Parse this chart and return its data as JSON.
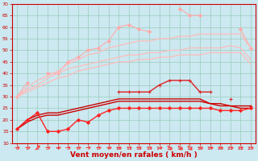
{
  "x": [
    0,
    1,
    2,
    3,
    4,
    5,
    6,
    7,
    8,
    9,
    10,
    11,
    12,
    13,
    14,
    15,
    16,
    17,
    18,
    19,
    20,
    21,
    22,
    23
  ],
  "series": [
    {
      "name": "jagged_pink_with_markers",
      "color": "#ffaaaa",
      "lw": 0.8,
      "marker": "D",
      "ms": 2.0,
      "values": [
        30,
        36,
        null,
        40,
        40,
        45,
        47,
        50,
        51,
        54,
        60,
        61,
        59,
        58,
        null,
        null,
        68,
        65,
        65,
        null,
        null,
        null,
        59,
        51
      ]
    },
    {
      "name": "smooth_pink_top",
      "color": "#ffbbbb",
      "lw": 0.9,
      "marker": null,
      "ms": 0,
      "values": [
        30,
        34,
        37,
        39,
        41,
        44,
        46,
        48,
        49,
        51,
        52,
        53,
        54,
        54,
        55,
        55,
        56,
        56,
        57,
        57,
        57,
        57,
        57,
        51
      ]
    },
    {
      "name": "smooth_pink_mid",
      "color": "#ffbbbb",
      "lw": 0.9,
      "marker": null,
      "ms": 0,
      "values": [
        30,
        33,
        35,
        38,
        40,
        42,
        43,
        44,
        45,
        46,
        47,
        48,
        48,
        49,
        49,
        50,
        50,
        51,
        51,
        51,
        51,
        52,
        51,
        46
      ]
    },
    {
      "name": "smooth_pink_low",
      "color": "#ffbbbb",
      "lw": 0.9,
      "marker": null,
      "ms": 0,
      "values": [
        30,
        32,
        34,
        36,
        38,
        39,
        41,
        42,
        43,
        44,
        45,
        45,
        46,
        46,
        47,
        47,
        48,
        48,
        48,
        49,
        49,
        49,
        49,
        44
      ]
    },
    {
      "name": "dark_red_peaked_markers",
      "color": "#dd2222",
      "lw": 1.0,
      "marker": "+",
      "ms": 3.5,
      "values": [
        null,
        null,
        null,
        null,
        null,
        null,
        null,
        null,
        null,
        null,
        32,
        32,
        32,
        32,
        35,
        37,
        37,
        37,
        32,
        32,
        null,
        29,
        null,
        26
      ]
    },
    {
      "name": "dark_red_smooth1",
      "color": "#cc0000",
      "lw": 1.0,
      "marker": null,
      "ms": 0,
      "values": [
        16,
        20,
        22,
        23,
        23,
        24,
        25,
        26,
        27,
        28,
        29,
        29,
        29,
        29,
        29,
        29,
        29,
        29,
        29,
        27,
        27,
        26,
        26,
        26
      ]
    },
    {
      "name": "dark_red_smooth2",
      "color": "#cc0000",
      "lw": 1.0,
      "marker": null,
      "ms": 0,
      "values": [
        16,
        19,
        21,
        22,
        22,
        23,
        24,
        25,
        26,
        27,
        28,
        28,
        28,
        28,
        28,
        28,
        28,
        28,
        28,
        27,
        26,
        26,
        25,
        25
      ]
    },
    {
      "name": "red_jagged_markers",
      "color": "#ff2222",
      "lw": 1.0,
      "marker": "D",
      "ms": 2.0,
      "values": [
        16,
        20,
        23,
        15,
        15,
        16,
        20,
        19,
        22,
        24,
        25,
        25,
        25,
        25,
        25,
        25,
        25,
        25,
        25,
        25,
        24,
        24,
        24,
        25
      ]
    }
  ],
  "wind_arrows": {
    "x": [
      0,
      1,
      2,
      3,
      4,
      5,
      6,
      7,
      8,
      9,
      10,
      11,
      12,
      13,
      14,
      15,
      16,
      17,
      18,
      19,
      20,
      21,
      22,
      23
    ],
    "directions": [
      0,
      0,
      45,
      0,
      0,
      0,
      0,
      0,
      0,
      0,
      0,
      0,
      0,
      0,
      0,
      315,
      315,
      315,
      0,
      0,
      0,
      0,
      0,
      0
    ],
    "color": "#ff4444"
  },
  "ylim": [
    10,
    70
  ],
  "yticks": [
    10,
    15,
    20,
    25,
    30,
    35,
    40,
    45,
    50,
    55,
    60,
    65,
    70
  ],
  "xlabel": "Vent moyen/en rafales ( km/h )",
  "bg_color": "#cce8f0",
  "grid_color": "#99ccbb",
  "axis_color": "#cc0000",
  "figsize": [
    3.2,
    2.0
  ],
  "dpi": 100
}
